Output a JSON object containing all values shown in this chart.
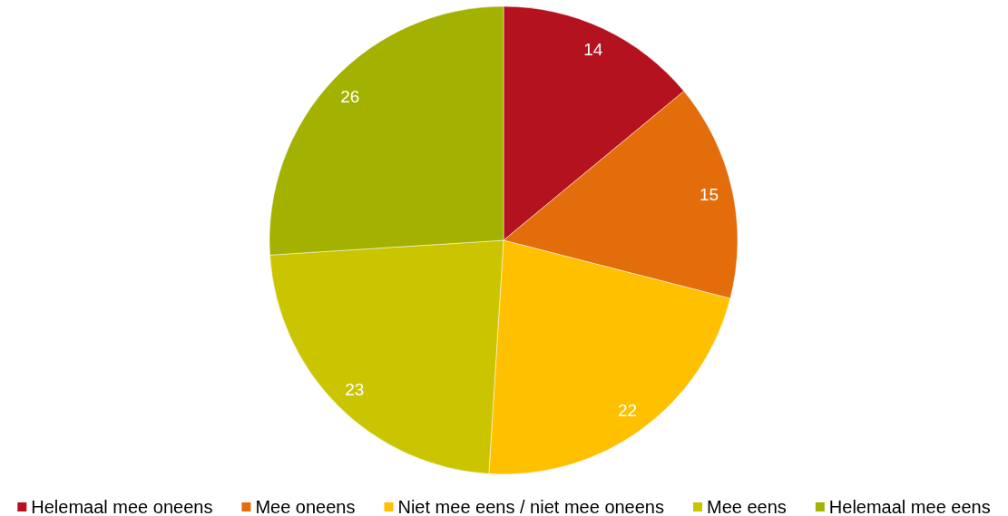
{
  "chart_data": {
    "type": "pie",
    "categories": [
      "Helemaal mee oneens",
      "Mee oneens",
      "Niet mee eens / niet mee oneens",
      "Mee eens",
      "Helemaal mee eens"
    ],
    "values": [
      14,
      15,
      22,
      23,
      26
    ],
    "colors": [
      "#b5121f",
      "#e36c0b",
      "#ffc000",
      "#cbc400",
      "#a3b100"
    ],
    "data_labels": true,
    "legend": "bottom"
  }
}
